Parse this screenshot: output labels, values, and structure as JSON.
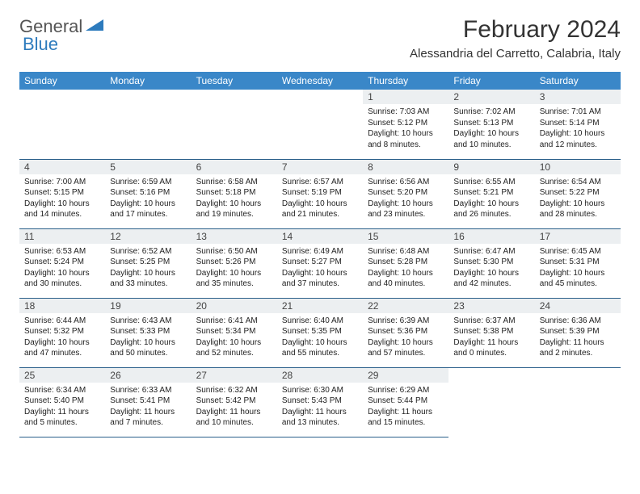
{
  "logo": {
    "general": "General",
    "blue": "Blue",
    "accent_color": "#2d7bbd"
  },
  "title": "February 2024",
  "location": "Alessandria del Carretto, Calabria, Italy",
  "header_bg": "#3a87c8",
  "daynum_bg": "#eceff1",
  "border_color": "#2a5f8a",
  "weekdays": [
    "Sunday",
    "Monday",
    "Tuesday",
    "Wednesday",
    "Thursday",
    "Friday",
    "Saturday"
  ],
  "weeks": [
    [
      null,
      null,
      null,
      null,
      {
        "n": "1",
        "sr": "Sunrise: 7:03 AM",
        "ss": "Sunset: 5:12 PM",
        "dl": "Daylight: 10 hours and 8 minutes."
      },
      {
        "n": "2",
        "sr": "Sunrise: 7:02 AM",
        "ss": "Sunset: 5:13 PM",
        "dl": "Daylight: 10 hours and 10 minutes."
      },
      {
        "n": "3",
        "sr": "Sunrise: 7:01 AM",
        "ss": "Sunset: 5:14 PM",
        "dl": "Daylight: 10 hours and 12 minutes."
      }
    ],
    [
      {
        "n": "4",
        "sr": "Sunrise: 7:00 AM",
        "ss": "Sunset: 5:15 PM",
        "dl": "Daylight: 10 hours and 14 minutes."
      },
      {
        "n": "5",
        "sr": "Sunrise: 6:59 AM",
        "ss": "Sunset: 5:16 PM",
        "dl": "Daylight: 10 hours and 17 minutes."
      },
      {
        "n": "6",
        "sr": "Sunrise: 6:58 AM",
        "ss": "Sunset: 5:18 PM",
        "dl": "Daylight: 10 hours and 19 minutes."
      },
      {
        "n": "7",
        "sr": "Sunrise: 6:57 AM",
        "ss": "Sunset: 5:19 PM",
        "dl": "Daylight: 10 hours and 21 minutes."
      },
      {
        "n": "8",
        "sr": "Sunrise: 6:56 AM",
        "ss": "Sunset: 5:20 PM",
        "dl": "Daylight: 10 hours and 23 minutes."
      },
      {
        "n": "9",
        "sr": "Sunrise: 6:55 AM",
        "ss": "Sunset: 5:21 PM",
        "dl": "Daylight: 10 hours and 26 minutes."
      },
      {
        "n": "10",
        "sr": "Sunrise: 6:54 AM",
        "ss": "Sunset: 5:22 PM",
        "dl": "Daylight: 10 hours and 28 minutes."
      }
    ],
    [
      {
        "n": "11",
        "sr": "Sunrise: 6:53 AM",
        "ss": "Sunset: 5:24 PM",
        "dl": "Daylight: 10 hours and 30 minutes."
      },
      {
        "n": "12",
        "sr": "Sunrise: 6:52 AM",
        "ss": "Sunset: 5:25 PM",
        "dl": "Daylight: 10 hours and 33 minutes."
      },
      {
        "n": "13",
        "sr": "Sunrise: 6:50 AM",
        "ss": "Sunset: 5:26 PM",
        "dl": "Daylight: 10 hours and 35 minutes."
      },
      {
        "n": "14",
        "sr": "Sunrise: 6:49 AM",
        "ss": "Sunset: 5:27 PM",
        "dl": "Daylight: 10 hours and 37 minutes."
      },
      {
        "n": "15",
        "sr": "Sunrise: 6:48 AM",
        "ss": "Sunset: 5:28 PM",
        "dl": "Daylight: 10 hours and 40 minutes."
      },
      {
        "n": "16",
        "sr": "Sunrise: 6:47 AM",
        "ss": "Sunset: 5:30 PM",
        "dl": "Daylight: 10 hours and 42 minutes."
      },
      {
        "n": "17",
        "sr": "Sunrise: 6:45 AM",
        "ss": "Sunset: 5:31 PM",
        "dl": "Daylight: 10 hours and 45 minutes."
      }
    ],
    [
      {
        "n": "18",
        "sr": "Sunrise: 6:44 AM",
        "ss": "Sunset: 5:32 PM",
        "dl": "Daylight: 10 hours and 47 minutes."
      },
      {
        "n": "19",
        "sr": "Sunrise: 6:43 AM",
        "ss": "Sunset: 5:33 PM",
        "dl": "Daylight: 10 hours and 50 minutes."
      },
      {
        "n": "20",
        "sr": "Sunrise: 6:41 AM",
        "ss": "Sunset: 5:34 PM",
        "dl": "Daylight: 10 hours and 52 minutes."
      },
      {
        "n": "21",
        "sr": "Sunrise: 6:40 AM",
        "ss": "Sunset: 5:35 PM",
        "dl": "Daylight: 10 hours and 55 minutes."
      },
      {
        "n": "22",
        "sr": "Sunrise: 6:39 AM",
        "ss": "Sunset: 5:36 PM",
        "dl": "Daylight: 10 hours and 57 minutes."
      },
      {
        "n": "23",
        "sr": "Sunrise: 6:37 AM",
        "ss": "Sunset: 5:38 PM",
        "dl": "Daylight: 11 hours and 0 minutes."
      },
      {
        "n": "24",
        "sr": "Sunrise: 6:36 AM",
        "ss": "Sunset: 5:39 PM",
        "dl": "Daylight: 11 hours and 2 minutes."
      }
    ],
    [
      {
        "n": "25",
        "sr": "Sunrise: 6:34 AM",
        "ss": "Sunset: 5:40 PM",
        "dl": "Daylight: 11 hours and 5 minutes."
      },
      {
        "n": "26",
        "sr": "Sunrise: 6:33 AM",
        "ss": "Sunset: 5:41 PM",
        "dl": "Daylight: 11 hours and 7 minutes."
      },
      {
        "n": "27",
        "sr": "Sunrise: 6:32 AM",
        "ss": "Sunset: 5:42 PM",
        "dl": "Daylight: 11 hours and 10 minutes."
      },
      {
        "n": "28",
        "sr": "Sunrise: 6:30 AM",
        "ss": "Sunset: 5:43 PM",
        "dl": "Daylight: 11 hours and 13 minutes."
      },
      {
        "n": "29",
        "sr": "Sunrise: 6:29 AM",
        "ss": "Sunset: 5:44 PM",
        "dl": "Daylight: 11 hours and 15 minutes."
      },
      null,
      null
    ]
  ]
}
